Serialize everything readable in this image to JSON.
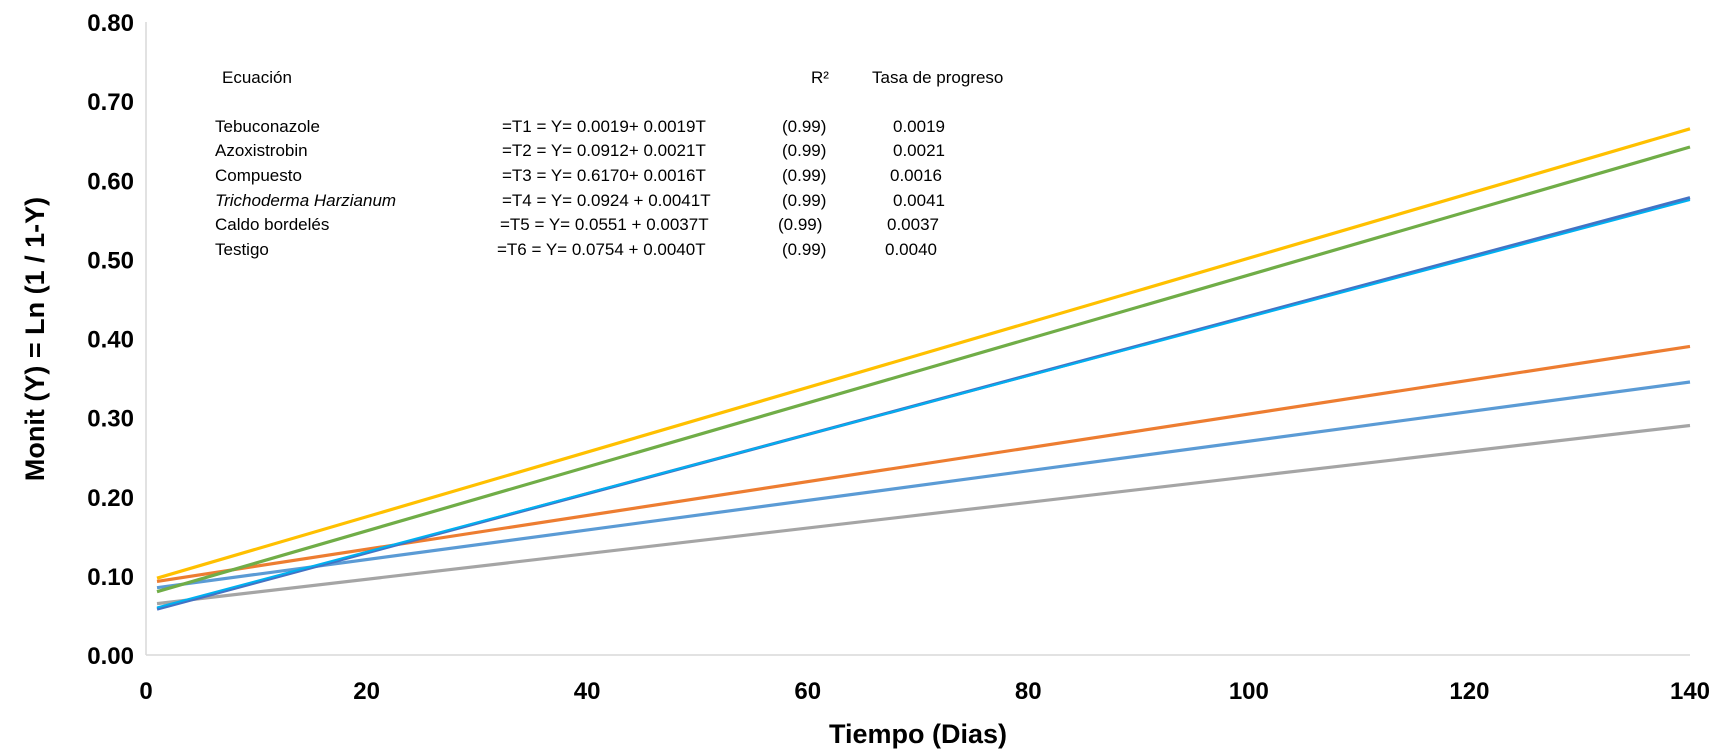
{
  "chart_data": {
    "type": "line",
    "xlabel": "Tiempo (Dias)",
    "ylabel": "Monit (Y) = Ln (1 / 1-Y)",
    "xlim": [
      0,
      140
    ],
    "ylim": [
      0,
      0.8
    ],
    "x_ticks": [
      "0",
      "20",
      "40",
      "60",
      "80",
      "100",
      "120",
      "140"
    ],
    "y_ticks": [
      "0.00",
      "0.10",
      "0.20",
      "0.30",
      "0.40",
      "0.50",
      "0.60",
      "0.70",
      "0.80"
    ],
    "grid": false,
    "legend": "none",
    "series": [
      {
        "color": "#A5A5A5",
        "x": [
          1,
          140
        ],
        "values": [
          0.065,
          0.29
        ]
      },
      {
        "color": "#5B9BD5",
        "x": [
          1,
          140
        ],
        "values": [
          0.085,
          0.345
        ]
      },
      {
        "color": "#ED7D31",
        "x": [
          1,
          140
        ],
        "values": [
          0.093,
          0.39
        ]
      },
      {
        "color": "#4472C4",
        "x": [
          1,
          140
        ],
        "values": [
          0.058,
          0.578
        ]
      },
      {
        "color": "#00B0F0",
        "x": [
          1,
          140
        ],
        "values": [
          0.06,
          0.575
        ]
      },
      {
        "color": "#70AD47",
        "x": [
          1,
          140
        ],
        "values": [
          0.08,
          0.642
        ]
      },
      {
        "color": "#FFC000",
        "x": [
          1,
          140
        ],
        "values": [
          0.097,
          0.665
        ]
      }
    ],
    "annotation": {
      "header_equation": "Ecuación",
      "header_r2": "R²",
      "header_rate": "Tasa  de progreso",
      "rows": [
        {
          "name": "Tebuconazole",
          "italic": false,
          "equation": "=T1 = Y= 0.0019+ 0.0019T",
          "r2": "(0.99)",
          "rate": "0.0019"
        },
        {
          "name": "Azoxistrobin",
          "italic": false,
          "equation": "=T2 = Y= 0.0912+ 0.0021T",
          "r2": "(0.99)",
          "rate": "0.0021"
        },
        {
          "name": "Compuesto",
          "italic": false,
          "equation": "=T3 = Y= 0.6170+ 0.0016T",
          "r2": "(0.99)",
          "rate": "0.0016"
        },
        {
          "name": "Trichoderma Harzianum",
          "italic": true,
          "equation": "=T4 = Y= 0.0924 + 0.0041T",
          "r2": "(0.99)",
          "rate": "0.0041"
        },
        {
          "name": "Caldo bordelés",
          "italic": false,
          "equation": "=T5 = Y= 0.0551 + 0.0037T",
          "r2": "(0.99)",
          "rate": "0.0037"
        },
        {
          "name": "Testigo",
          "italic": false,
          "equation": "=T6 = Y= 0.0754 + 0.0040T",
          "r2": "(0.99)",
          "rate": "0.0040"
        }
      ]
    }
  }
}
